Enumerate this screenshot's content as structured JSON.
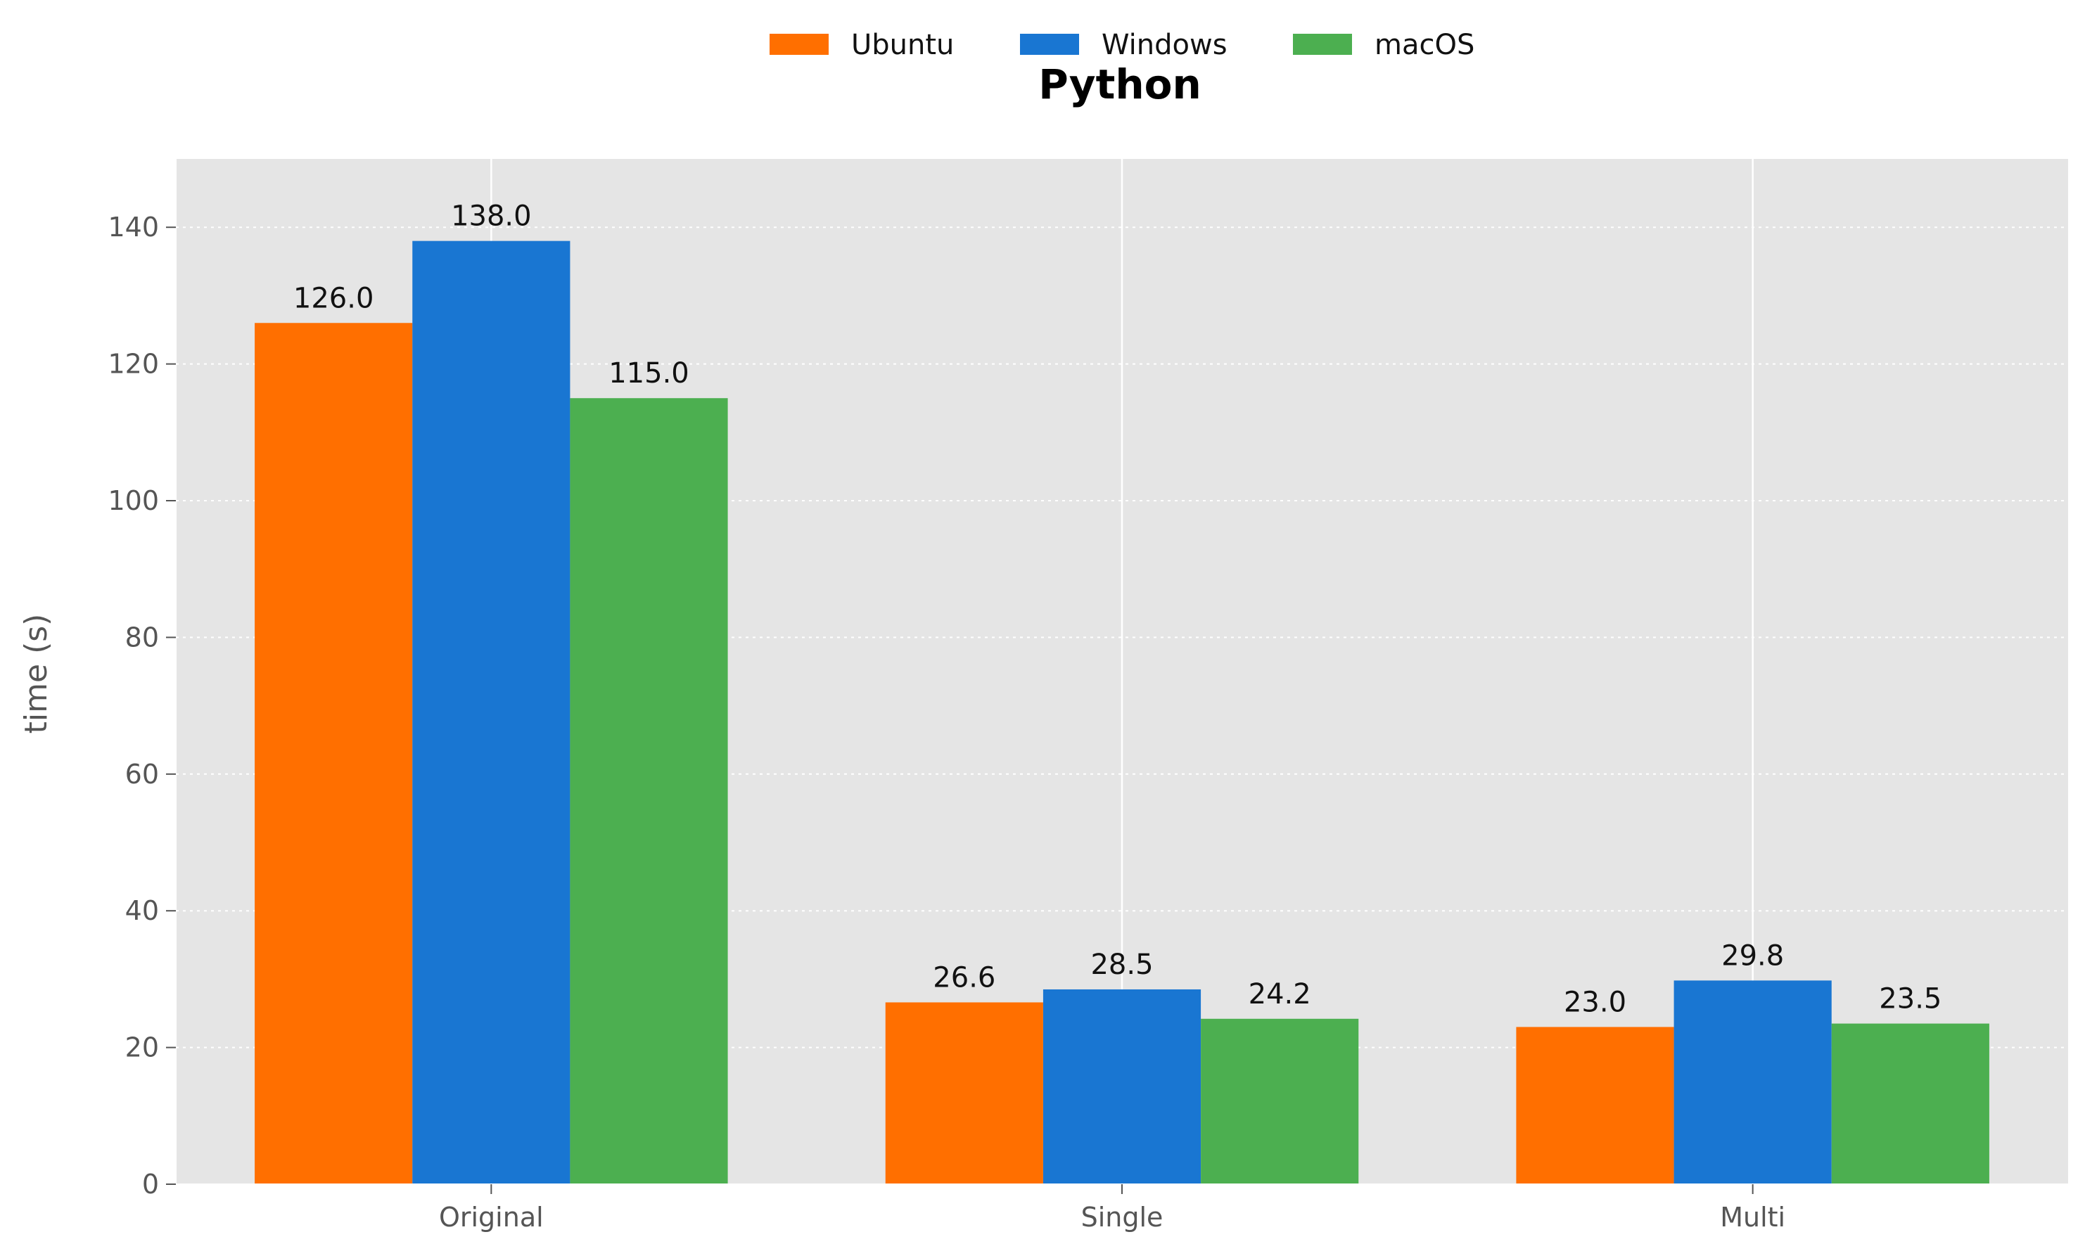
{
  "chart_data": {
    "type": "bar",
    "title": "Python",
    "xlabel": "",
    "ylabel": "time (s)",
    "categories": [
      "Original",
      "Single",
      "Multi"
    ],
    "series": [
      {
        "name": "Ubuntu",
        "color": "#ff6f00",
        "values": [
          126.0,
          26.6,
          23.0
        ],
        "labels": [
          "126.0",
          "26.6",
          "23.0"
        ]
      },
      {
        "name": "Windows",
        "color": "#1976d2",
        "values": [
          138.0,
          28.5,
          29.8
        ],
        "labels": [
          "138.0",
          "28.5",
          "29.8"
        ]
      },
      {
        "name": "macOS",
        "color": "#4caf50",
        "values": [
          115.0,
          24.2,
          23.5
        ],
        "labels": [
          "115.0",
          "24.2",
          "23.5"
        ]
      }
    ],
    "ylim": [
      0,
      150
    ],
    "yticks": [
      0,
      20,
      40,
      60,
      80,
      100,
      120,
      140
    ],
    "grid": true,
    "legend_position": "top-center",
    "background": "#e5e5e5"
  }
}
